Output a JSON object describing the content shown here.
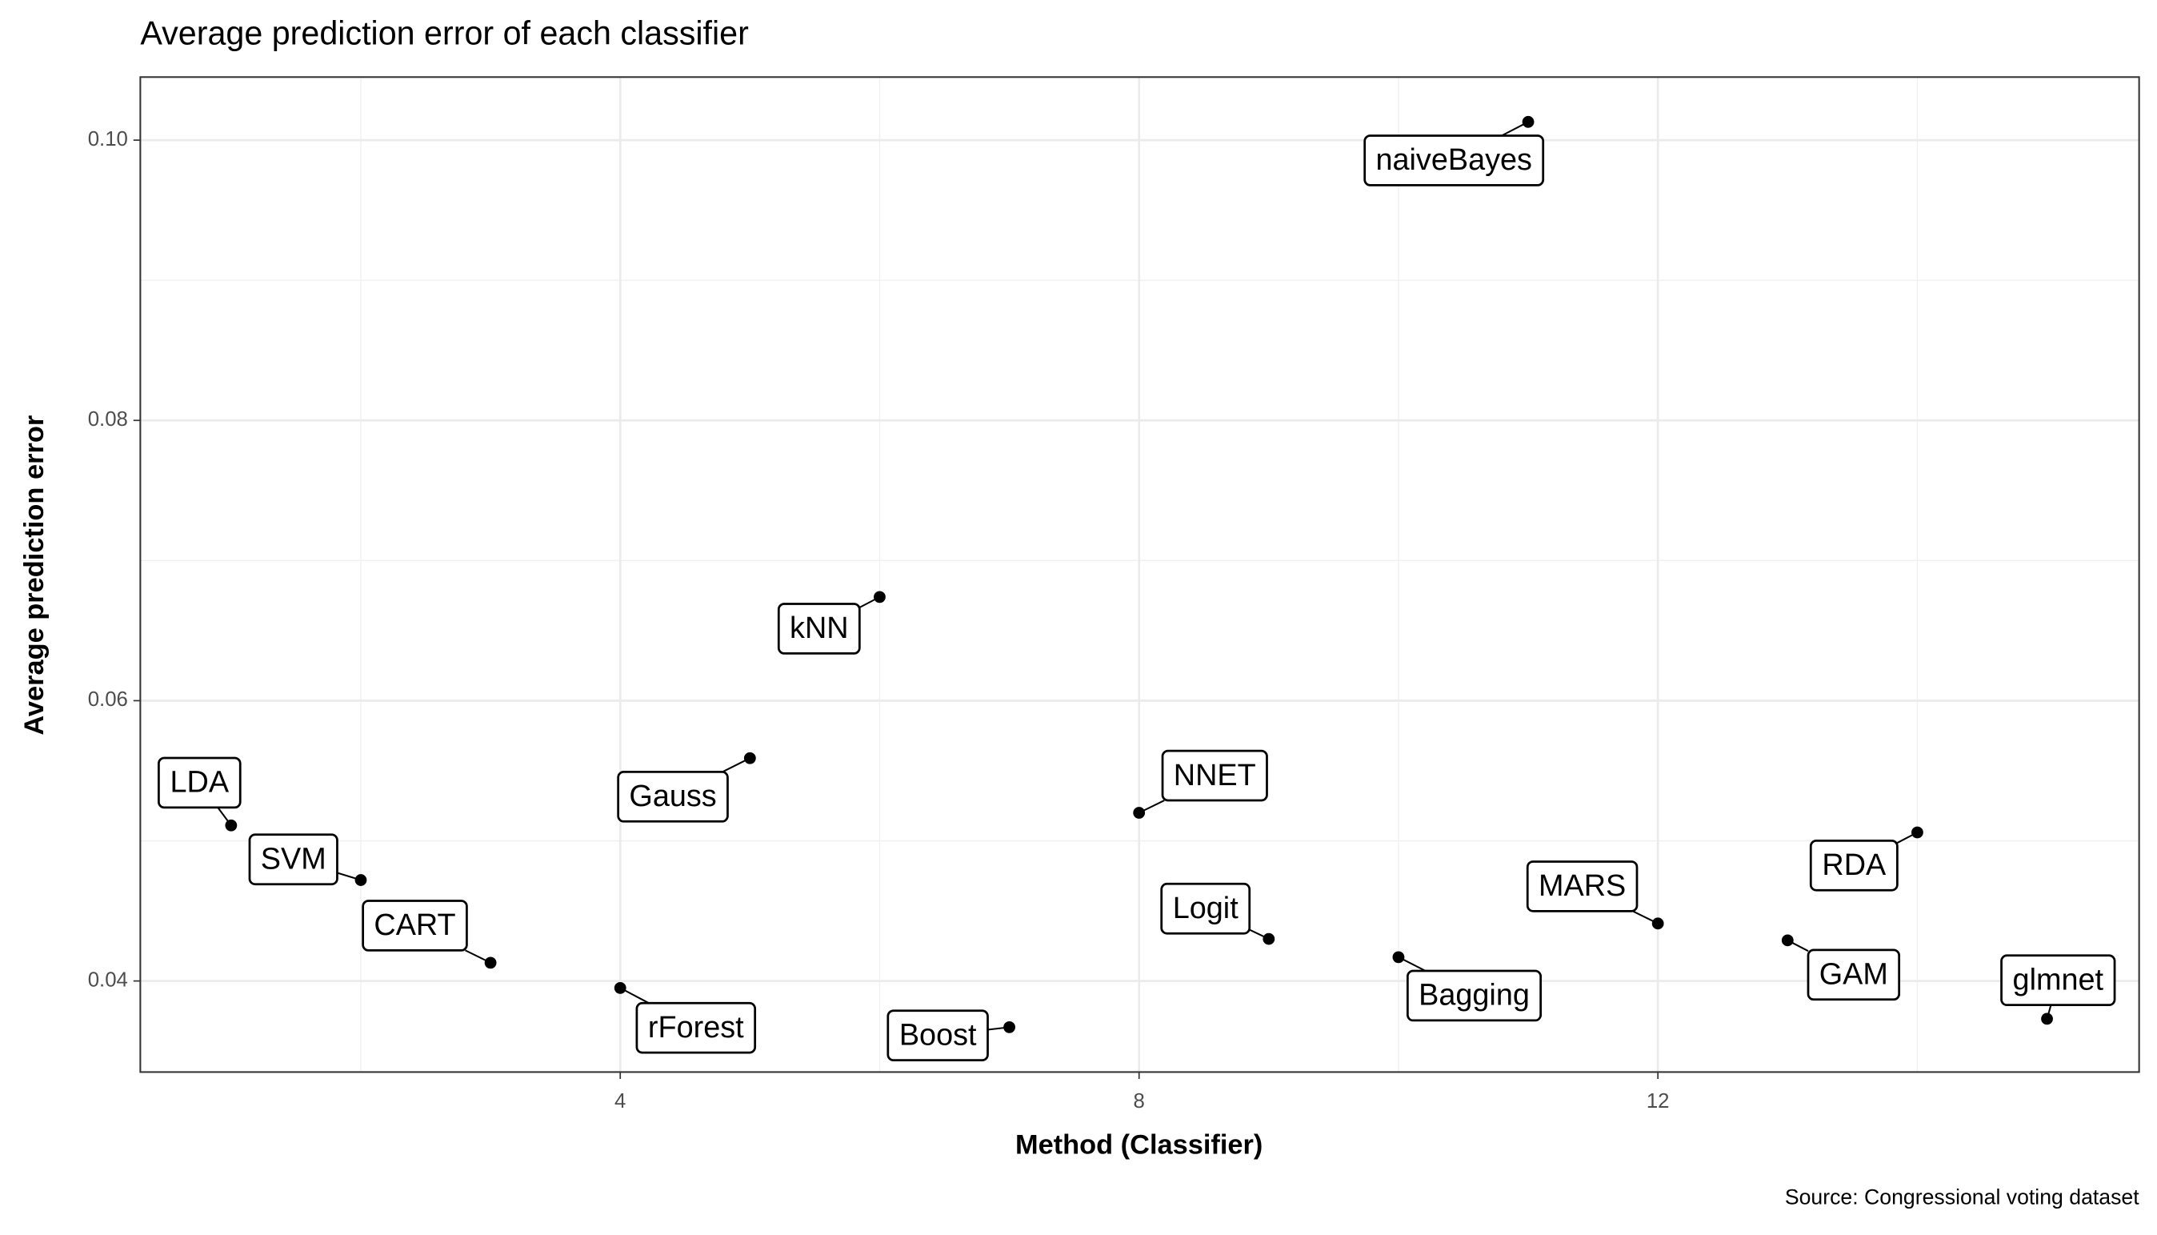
{
  "chart_data": {
    "type": "scatter",
    "title": "Average prediction error of each classifier",
    "x_label": "Method (Classifier)",
    "y_label": "Average prediction error",
    "caption": "Source: Congressional voting dataset",
    "x": [
      1,
      2,
      3,
      4,
      5,
      6,
      7,
      8,
      9,
      10,
      11,
      12,
      13,
      14,
      15
    ],
    "values": [
      0.0511,
      0.0472,
      0.0413,
      0.0395,
      0.0559,
      0.0674,
      0.0367,
      0.052,
      0.043,
      0.0417,
      0.1013,
      0.0441,
      0.0429,
      0.0506,
      0.0373
    ],
    "labels": [
      "LDA",
      "SVM",
      "CART",
      "rForest",
      "Gauss",
      "kNN",
      "Boost",
      "NNET",
      "Logit",
      "Bagging",
      "naiveBayes",
      "MARS",
      "GAM",
      "RDA",
      "glmnet"
    ],
    "color": "#000000",
    "xlim": [
      0.3,
      15.71
    ],
    "ylim": [
      0.0335,
      0.1045
    ],
    "xticks": [
      4,
      8,
      12
    ],
    "yticks": [
      0.04,
      0.06,
      0.08,
      {
        "value": 0.1,
        "label": "0.10"
      }
    ],
    "grid": true
  }
}
